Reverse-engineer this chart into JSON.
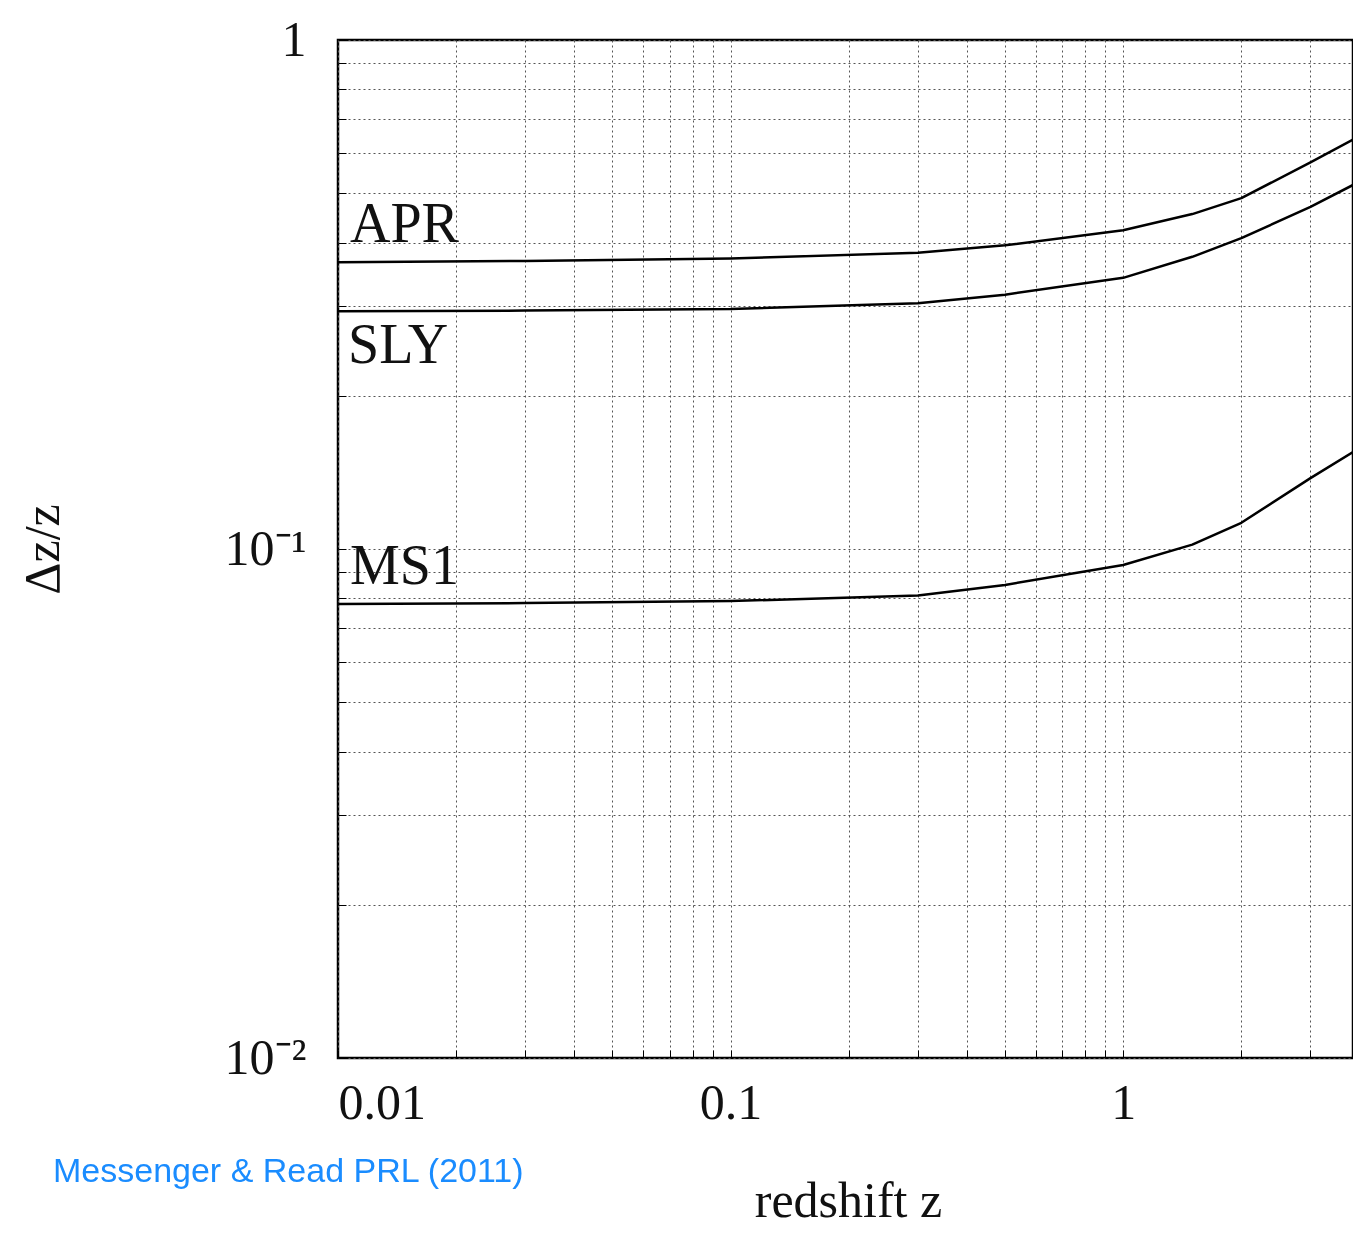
{
  "chart_data": {
    "type": "line",
    "xlabel": "redshift z",
    "ylabel": "Δz/z",
    "annotations": [
      "Messenger & Read PRL (2011)"
    ],
    "log": "xy",
    "grid": true,
    "line_style": "solid",
    "xlim": [
      0.01,
      3.85
    ],
    "ylim": [
      0.01,
      1
    ],
    "xticks": [
      0.01,
      {
        "value": 0.02,
        "label": null
      },
      {
        "value": 0.03,
        "label": null
      },
      {
        "value": 0.04,
        "label": null
      },
      {
        "value": 0.05,
        "label": null
      },
      {
        "value": 0.06,
        "label": null
      },
      {
        "value": 0.07,
        "label": null
      },
      {
        "value": 0.08,
        "label": null
      },
      {
        "value": 0.09,
        "label": null
      },
      0.1,
      {
        "value": 0.2,
        "label": null
      },
      {
        "value": 0.3,
        "label": null
      },
      {
        "value": 0.4,
        "label": null
      },
      {
        "value": 0.5,
        "label": null
      },
      {
        "value": 0.6,
        "label": null
      },
      {
        "value": 0.7,
        "label": null
      },
      {
        "value": 0.8,
        "label": null
      },
      {
        "value": 0.9,
        "label": null
      },
      1,
      {
        "value": 2,
        "label": null
      },
      {
        "value": 3,
        "label": null
      }
    ],
    "yticks": [
      {
        "value": 0.01,
        "label": "10⁻²"
      },
      {
        "value": 0.02,
        "label": null
      },
      {
        "value": 0.03,
        "label": null
      },
      {
        "value": 0.04,
        "label": null
      },
      {
        "value": 0.05,
        "label": null
      },
      {
        "value": 0.06,
        "label": null
      },
      {
        "value": 0.07,
        "label": null
      },
      {
        "value": 0.08,
        "label": null
      },
      {
        "value": 0.09,
        "label": null
      },
      {
        "value": 0.1,
        "label": "10⁻¹"
      },
      {
        "value": 0.2,
        "label": null
      },
      {
        "value": 0.3,
        "label": null
      },
      {
        "value": 0.4,
        "label": null
      },
      {
        "value": 0.5,
        "label": null
      },
      {
        "value": 0.6,
        "label": null
      },
      {
        "value": 0.7,
        "label": null
      },
      {
        "value": 0.8,
        "label": null
      },
      {
        "value": 0.9,
        "label": null
      },
      1
    ],
    "x": [
      0.01,
      0.03,
      0.1,
      0.3,
      0.5,
      1,
      1.5,
      2,
      3,
      3.85
    ],
    "series": [
      {
        "name": "APR",
        "color": "#000000",
        "values": [
          0.366,
          0.368,
          0.372,
          0.382,
          0.395,
          0.423,
          0.455,
          0.489,
          0.575,
          0.637
        ]
      },
      {
        "name": "SLY",
        "color": "#000000",
        "values": [
          0.293,
          0.294,
          0.296,
          0.304,
          0.316,
          0.341,
          0.375,
          0.408,
          0.47,
          0.519
        ]
      },
      {
        "name": "MS1",
        "color": "#000000",
        "values": [
          0.078,
          0.0783,
          0.079,
          0.081,
          0.085,
          0.093,
          0.102,
          0.1126,
          0.1378,
          0.155
        ]
      }
    ]
  }
}
